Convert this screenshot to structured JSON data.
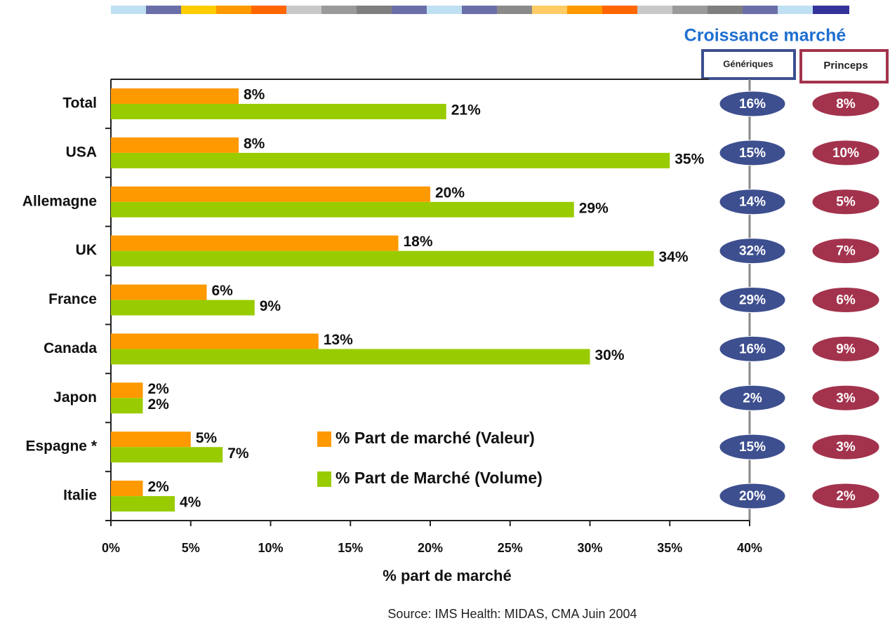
{
  "chart_data": {
    "type": "bar",
    "orientation": "horizontal",
    "categories": [
      "Total",
      "USA",
      "Allemagne",
      "UK",
      "France",
      "Canada",
      "Japon",
      "Espagne *",
      "Italie"
    ],
    "series": [
      {
        "name": "% Part de marché (Valeur)",
        "color": "#ff9900",
        "values": [
          8,
          8,
          20,
          18,
          6,
          13,
          2,
          5,
          2
        ],
        "value_labels": [
          "8%",
          "8%",
          "20%",
          "18%",
          "6%",
          "13%",
          "2%",
          "5%",
          "2%"
        ]
      },
      {
        "name": "% Part de Marché (Volume)",
        "color": "#99cc00",
        "values": [
          21,
          35,
          29,
          34,
          9,
          30,
          2,
          7,
          4
        ],
        "value_labels": [
          "21%",
          "35%",
          "29%",
          "34%",
          "9%",
          "30%",
          "2%",
          "7%",
          "4%"
        ]
      }
    ],
    "xlim": [
      0,
      40
    ],
    "xticks": [
      {
        "value": 0,
        "label": "0%"
      },
      {
        "value": 5,
        "label": "5%"
      },
      {
        "value": 10,
        "label": "10%"
      },
      {
        "value": 15,
        "label": "15%"
      },
      {
        "value": 20,
        "label": "20%"
      },
      {
        "value": 25,
        "label": "25%"
      },
      {
        "value": 30,
        "label": "30%"
      },
      {
        "value": 35,
        "label": "35%"
      },
      {
        "value": 40,
        "label": "40%"
      }
    ],
    "x_label": "% part de marché",
    "source": "Source: IMS Health: MIDAS, CMA Juin 2004",
    "growth": {
      "title": "Croissance marché",
      "columns": [
        {
          "name": "Génériques",
          "color": "#3d4f8f",
          "values": [
            16,
            15,
            14,
            32,
            29,
            16,
            2,
            15,
            20
          ],
          "value_labels": [
            "16%",
            "15%",
            "14%",
            "32%",
            "29%",
            "16%",
            "2%",
            "15%",
            "20%"
          ]
        },
        {
          "name": "Princeps",
          "color": "#a3334d",
          "values": [
            8,
            10,
            5,
            7,
            6,
            9,
            3,
            3,
            2
          ],
          "value_labels": [
            "8%",
            "10%",
            "5%",
            "7%",
            "6%",
            "9%",
            "3%",
            "3%",
            "2%"
          ]
        }
      ]
    }
  }
}
